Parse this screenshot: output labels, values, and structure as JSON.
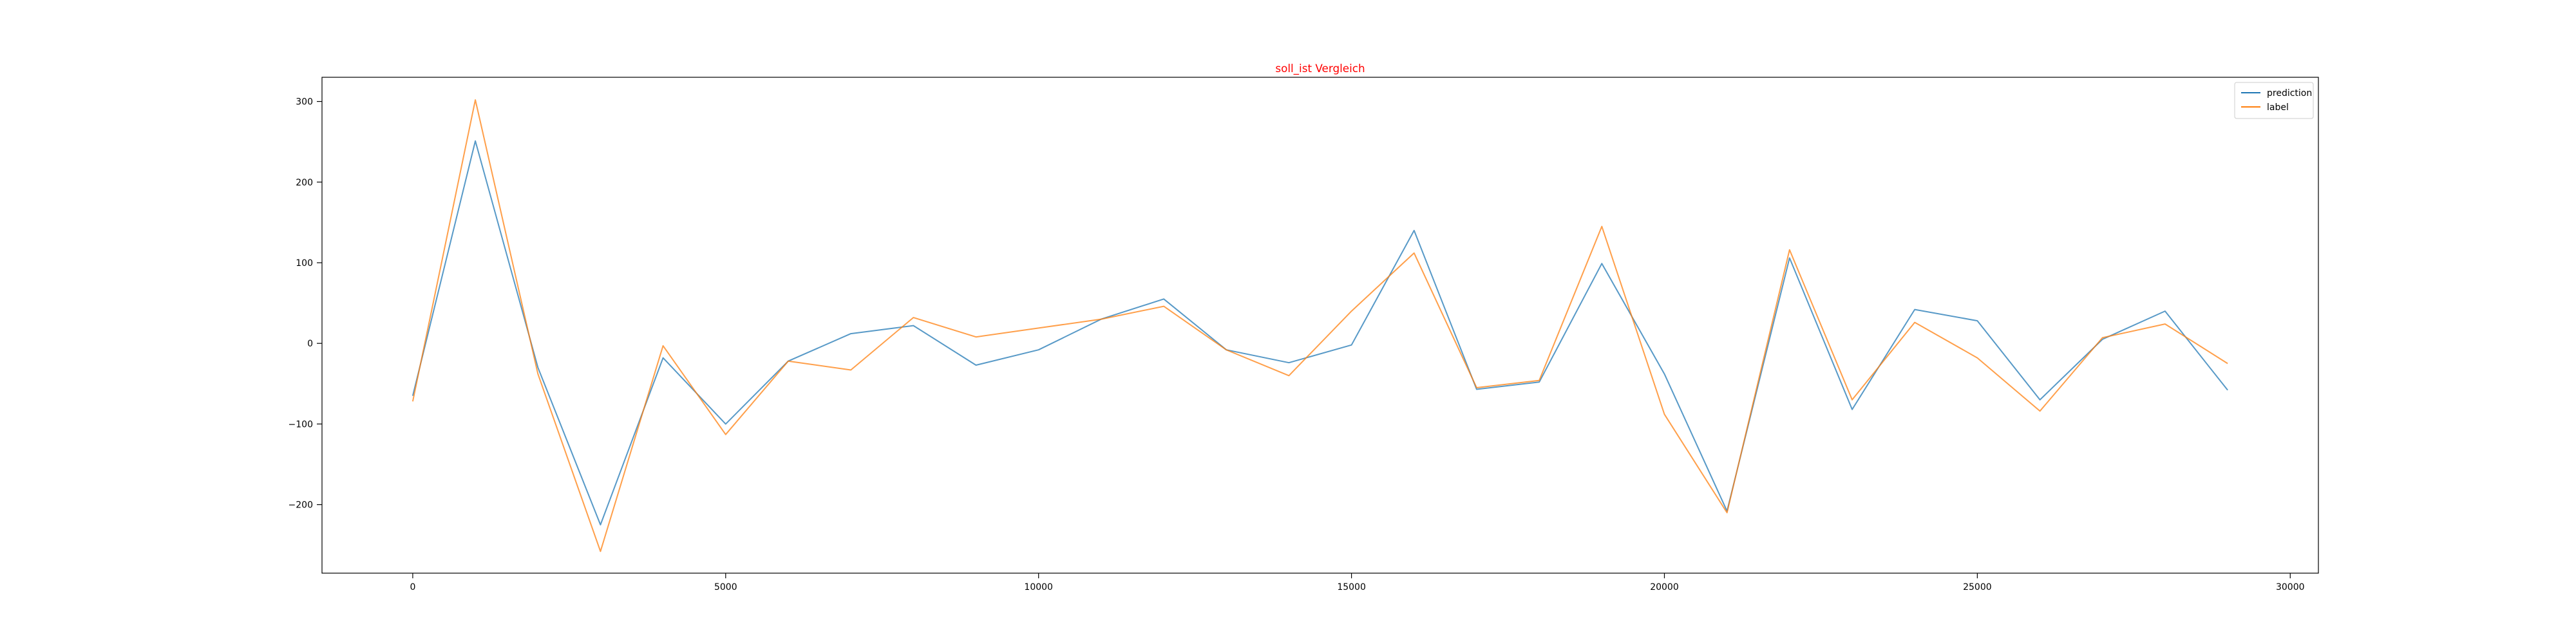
{
  "chart_data": {
    "type": "line",
    "title": "soll_ist Vergleich",
    "title_color": "#ff0000",
    "xlabel": "",
    "ylabel": "",
    "xlim": [
      -1450,
      30450
    ],
    "ylim": [
      -285,
      330
    ],
    "xticks": [
      0,
      5000,
      10000,
      15000,
      20000,
      25000,
      30000
    ],
    "xtick_labels": [
      "0",
      "5000",
      "10000",
      "15000",
      "20000",
      "25000",
      "30000"
    ],
    "yticks": [
      -200,
      -100,
      0,
      100,
      200,
      300
    ],
    "ytick_labels": [
      "−200",
      "−100",
      "0",
      "100",
      "200",
      "300"
    ],
    "grid": false,
    "legend_position": "top-right",
    "x": [
      0,
      1000,
      2000,
      3000,
      4000,
      5000,
      6000,
      7000,
      8000,
      9000,
      10000,
      11000,
      12000,
      13000,
      14000,
      15000,
      16000,
      17000,
      18000,
      19000,
      20000,
      21000,
      22000,
      23000,
      24000,
      25000,
      26000,
      27000,
      28000,
      29000
    ],
    "series": [
      {
        "name": "prediction",
        "color": "#1f77b4",
        "values": [
          -65,
          251,
          -30,
          -225,
          -18,
          -100,
          -22,
          12,
          22,
          -27,
          -8,
          30,
          55,
          -8,
          -24,
          -2,
          140,
          -57,
          -48,
          99,
          -38,
          -208,
          106,
          -82,
          42,
          28,
          -70,
          5,
          40,
          -58
        ]
      },
      {
        "name": "label",
        "color": "#ff7f0e",
        "values": [
          -72,
          302,
          -38,
          -258,
          -3,
          -113,
          -22,
          -33,
          32,
          8,
          19,
          30,
          46,
          -8,
          -40,
          40,
          112,
          -55,
          -46,
          145,
          -88,
          -210,
          116,
          -70,
          26,
          -18,
          -84,
          7,
          24,
          -25
        ]
      }
    ]
  }
}
